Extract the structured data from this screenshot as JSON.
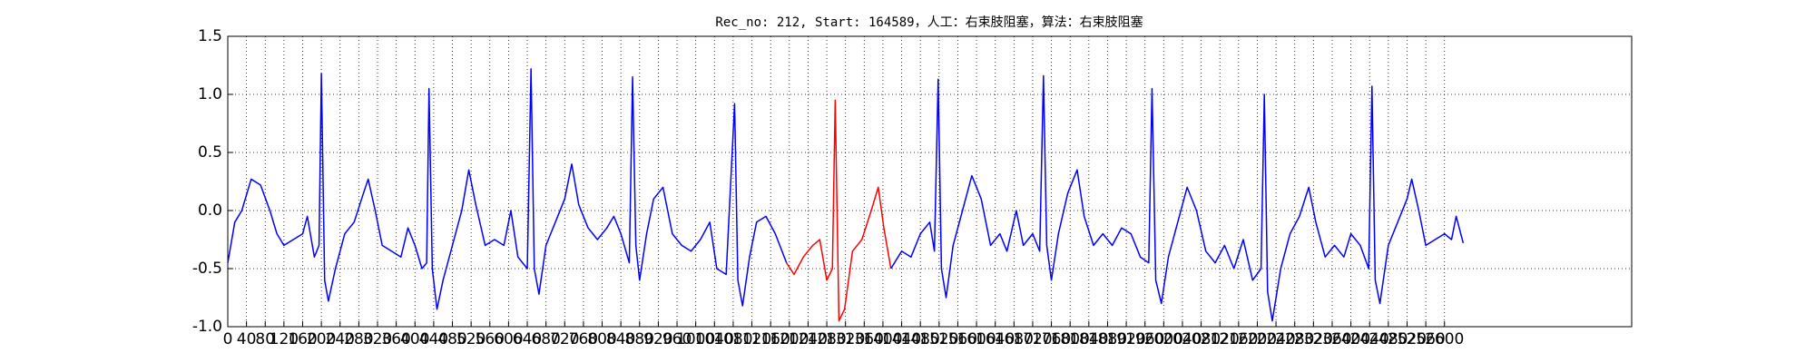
{
  "chart_data": {
    "type": "line",
    "title": "Rec_no: 212, Start: 164589，人工：右束肢阻塞，算法：右束肢阻塞",
    "xlim": [
      0,
      3000
    ],
    "ylim": [
      -1,
      1.5
    ],
    "xticks": [
      0,
      40,
      80,
      120,
      160,
      200,
      240,
      280,
      320,
      360,
      400,
      440,
      480,
      520,
      560,
      600,
      640,
      680,
      720,
      760,
      800,
      840,
      880,
      920,
      960,
      1000,
      1040,
      1080,
      1120,
      1160,
      1200,
      1240,
      1280,
      1320,
      1360,
      1400,
      1440,
      1480,
      1520,
      1560,
      1600,
      1640,
      1680,
      1720,
      1760,
      1800,
      1840,
      1880,
      1920,
      1960,
      2000,
      2040,
      2080,
      2120,
      2160,
      2200,
      2240,
      2280,
      2320,
      2360,
      2400,
      2440,
      2480,
      2520,
      2560,
      2600
    ],
    "yticks": [
      {
        "value": -1,
        "label": "-1.0"
      },
      -0.5,
      {
        "value": 0,
        "label": "0.0"
      },
      0.5,
      {
        "value": 1,
        "label": "1.0"
      },
      1.5
    ],
    "grid": true,
    "series": [
      {
        "color": "#0000ff",
        "x": [
          0,
          15,
          30,
          50,
          70,
          90,
          105,
          120,
          140,
          160,
          170,
          185,
          195,
          200,
          207,
          215,
          230,
          250,
          270,
          290,
          300,
          315,
          330,
          350,
          370,
          385,
          400,
          415,
          425,
          430,
          437,
          447,
          460,
          480,
          500,
          515,
          530,
          550,
          570,
          590,
          605,
          620,
          640,
          648,
          655,
          665,
          680,
          700,
          720,
          735,
          750,
          770,
          790,
          810,
          825,
          840,
          858,
          865,
          872,
          880,
          895,
          910,
          930,
          950,
          970,
          990,
          1010,
          1030,
          1045,
          1065,
          1083,
          1090,
          1100,
          1115,
          1130,
          1150,
          1170,
          1194
        ],
        "values": [
          -0.45,
          -0.1,
          0.0,
          0.27,
          0.22,
          0.0,
          -0.2,
          -0.3,
          -0.25,
          -0.2,
          -0.05,
          -0.4,
          -0.3,
          1.18,
          -0.6,
          -0.78,
          -0.5,
          -0.2,
          -0.1,
          0.15,
          0.27,
          0.0,
          -0.3,
          -0.35,
          -0.4,
          -0.15,
          -0.3,
          -0.5,
          -0.45,
          1.05,
          -0.5,
          -0.85,
          -0.6,
          -0.3,
          0.0,
          0.35,
          0.05,
          -0.3,
          -0.25,
          -0.3,
          0.0,
          -0.4,
          -0.5,
          1.22,
          -0.5,
          -0.72,
          -0.3,
          -0.1,
          0.1,
          0.4,
          0.05,
          -0.15,
          -0.25,
          -0.15,
          -0.05,
          -0.2,
          -0.45,
          1.15,
          -0.3,
          -0.6,
          -0.2,
          0.1,
          0.2,
          -0.2,
          -0.3,
          -0.35,
          -0.25,
          -0.1,
          -0.5,
          -0.55,
          0.92,
          -0.6,
          -0.82,
          -0.4,
          -0.1,
          -0.05,
          -0.2,
          -0.45
        ]
      },
      {
        "color": "#ff0000",
        "x": [
          1194,
          1210,
          1230,
          1250,
          1265,
          1280,
          1292,
          1298,
          1306,
          1318,
          1335,
          1355,
          1375,
          1390,
          1402,
          1417
        ],
        "values": [
          -0.45,
          -0.55,
          -0.4,
          -0.3,
          -0.25,
          -0.6,
          -0.5,
          0.95,
          -0.95,
          -0.85,
          -0.35,
          -0.25,
          0.0,
          0.2,
          -0.15,
          -0.5
        ]
      },
      {
        "color": "#0000ff",
        "x": [
          1417,
          1440,
          1460,
          1480,
          1500,
          1510,
          1518,
          1525,
          1535,
          1550,
          1570,
          1590,
          1610,
          1630,
          1650,
          1665,
          1685,
          1700,
          1720,
          1735,
          1743,
          1750,
          1760,
          1775,
          1795,
          1815,
          1830,
          1850,
          1870,
          1890,
          1910,
          1930,
          1950,
          1968,
          1975,
          1983,
          1995,
          2010,
          2030,
          2050,
          2070,
          2090,
          2110,
          2130,
          2150,
          2170,
          2190,
          2208,
          2215,
          2222,
          2232,
          2250,
          2270,
          2290,
          2310,
          2325,
          2345,
          2365,
          2385,
          2400,
          2420,
          2438,
          2445,
          2452,
          2462,
          2480,
          2500,
          2520,
          2530,
          2545,
          2560,
          2580,
          2600,
          2615,
          2625,
          2640
        ],
        "values": [
          -0.5,
          -0.35,
          -0.4,
          -0.2,
          -0.1,
          -0.35,
          1.13,
          -0.5,
          -0.75,
          -0.3,
          0.0,
          0.3,
          0.1,
          -0.3,
          -0.2,
          -0.35,
          0.0,
          -0.3,
          -0.2,
          -0.35,
          1.16,
          -0.3,
          -0.6,
          -0.2,
          0.15,
          0.35,
          -0.05,
          -0.3,
          -0.2,
          -0.3,
          -0.15,
          -0.2,
          -0.4,
          -0.45,
          1.05,
          -0.6,
          -0.8,
          -0.4,
          -0.1,
          0.2,
          0.0,
          -0.35,
          -0.45,
          -0.3,
          -0.5,
          -0.25,
          -0.6,
          -0.5,
          1.0,
          -0.7,
          -0.95,
          -0.5,
          -0.2,
          -0.05,
          0.2,
          -0.1,
          -0.4,
          -0.3,
          -0.4,
          -0.2,
          -0.3,
          -0.5,
          1.07,
          -0.6,
          -0.8,
          -0.3,
          -0.1,
          0.1,
          0.27,
          0.0,
          -0.3,
          -0.25,
          -0.2,
          -0.25,
          -0.05,
          -0.28
        ]
      }
    ]
  }
}
